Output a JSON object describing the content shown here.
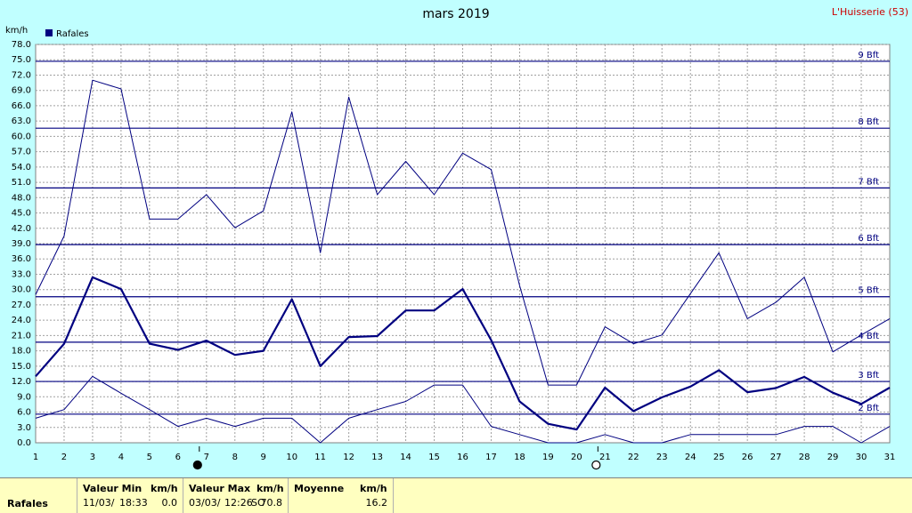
{
  "header": {
    "title": "mars 2019",
    "site": "L'Huisserie (53)"
  },
  "chart_data": {
    "type": "line",
    "title": "mars 2019",
    "ylabel": "km/h",
    "ylim": [
      0,
      78
    ],
    "yticks": [
      "0.0",
      "3.0",
      "6.0",
      "9.0",
      "12.0",
      "15.0",
      "18.0",
      "21.0",
      "24.0",
      "27.0",
      "30.0",
      "33.0",
      "36.0",
      "39.0",
      "42.0",
      "45.0",
      "48.0",
      "51.0",
      "54.0",
      "57.0",
      "60.0",
      "63.0",
      "66.0",
      "69.0",
      "72.0",
      "75.0",
      "78.0"
    ],
    "x": [
      1,
      2,
      3,
      4,
      5,
      6,
      7,
      8,
      9,
      10,
      11,
      12,
      13,
      14,
      15,
      16,
      17,
      18,
      19,
      20,
      21,
      22,
      23,
      24,
      25,
      26,
      27,
      28,
      29,
      30,
      31
    ],
    "legend": [
      "Rafales"
    ],
    "series": [
      {
        "role": "max",
        "values": [
          29.0,
          40.5,
          71.0,
          69.3,
          43.8,
          43.8,
          48.6,
          42.1,
          45.4,
          64.8,
          37.2,
          67.7,
          48.6,
          55.1,
          48.6,
          56.7,
          53.5,
          30.8,
          11.3,
          11.3,
          22.7,
          19.4,
          21.1,
          29.2,
          37.2,
          24.3,
          27.5,
          32.4,
          17.8,
          21.1,
          24.3
        ],
        "color": "#000080"
      },
      {
        "role": "mean",
        "values": [
          13.0,
          19.4,
          32.4,
          30.1,
          19.4,
          18.2,
          20.0,
          17.2,
          18.0,
          28.1,
          15.0,
          20.7,
          20.9,
          25.9,
          25.9,
          30.1,
          20.1,
          8.1,
          3.7,
          2.6,
          10.8,
          6.2,
          8.9,
          11.0,
          14.2,
          9.9,
          10.7,
          12.9,
          9.8,
          7.6,
          10.8
        ],
        "color": "#000080"
      },
      {
        "role": "min",
        "values": [
          4.8,
          6.5,
          13.0,
          9.7,
          6.5,
          3.2,
          4.8,
          3.2,
          4.8,
          4.8,
          0.0,
          4.8,
          6.5,
          8.1,
          11.3,
          11.3,
          3.2,
          1.6,
          0.0,
          0.0,
          1.6,
          0.0,
          0.0,
          1.6,
          1.6,
          1.6,
          1.6,
          3.2,
          3.2,
          0.0,
          3.2
        ],
        "color": "#000080"
      }
    ],
    "beaufort": [
      {
        "label": "2 Bft",
        "value": 5.6
      },
      {
        "label": "3 Bft",
        "value": 12.0
      },
      {
        "label": "4 Bft",
        "value": 19.7
      },
      {
        "label": "5 Bft",
        "value": 28.6
      },
      {
        "label": "6 Bft",
        "value": 38.8
      },
      {
        "label": "7 Bft",
        "value": 49.9
      },
      {
        "label": "8 Bft",
        "value": 61.6
      },
      {
        "label": "9 Bft",
        "value": 74.7
      }
    ],
    "moon": [
      {
        "day": 7,
        "phase": "new"
      },
      {
        "day": 21,
        "phase": "full"
      }
    ],
    "grid": true
  },
  "stats": {
    "row_label": "Rafales",
    "min": {
      "label": "Valeur Min",
      "unit": "km/h",
      "date": "11/03/",
      "time": "18:33",
      "value": "0.0"
    },
    "max": {
      "label": "Valeur Max",
      "unit": "km/h",
      "date": "03/03/",
      "time": "12:26",
      "dir": "SO",
      "value": "70.8"
    },
    "mean": {
      "label": "Moyenne",
      "unit": "km/h",
      "value": "16.2"
    }
  }
}
